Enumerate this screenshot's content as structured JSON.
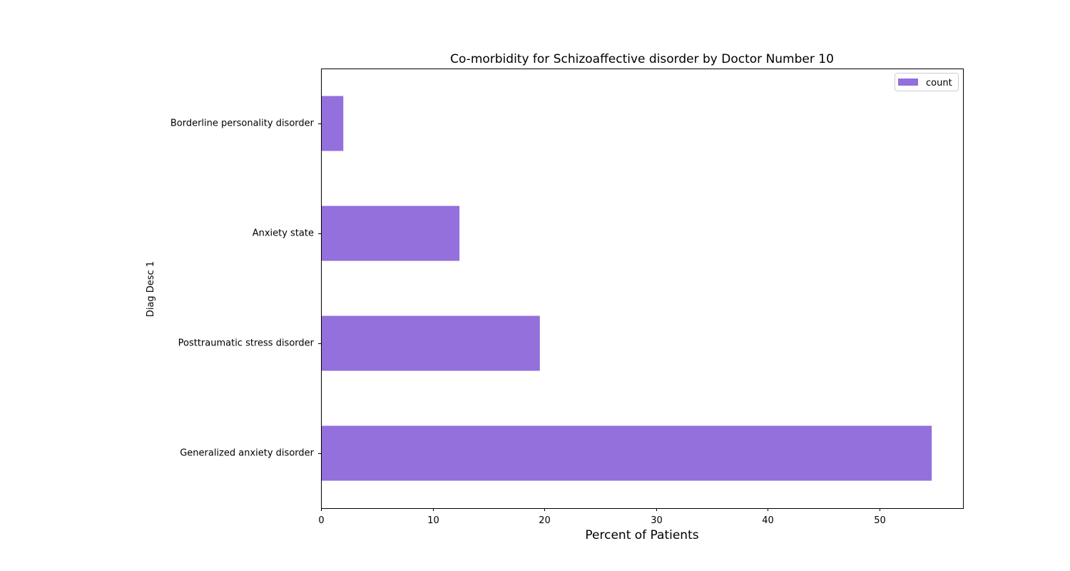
{
  "chart_data": {
    "type": "bar",
    "orientation": "horizontal",
    "title": "Co-morbidity for Schizoaffective disorder by Doctor Number 10",
    "xlabel": "Percent of Patients",
    "ylabel": "Diag Desc 1",
    "categories": [
      "Generalized anxiety disorder",
      "Posttraumatic stress disorder",
      "Anxiety state",
      "Borderline personality disorder"
    ],
    "series": [
      {
        "name": "count",
        "values": [
          54.7,
          19.6,
          12.4,
          2.0
        ],
        "color": "#9370DB"
      }
    ],
    "xlim": [
      0,
      57.5
    ],
    "xticks": [
      0,
      10,
      20,
      30,
      40,
      50
    ],
    "xtick_labels": [
      "0",
      "10",
      "20",
      "30",
      "40",
      "50"
    ],
    "grid": false,
    "legend_position": "upper right"
  }
}
